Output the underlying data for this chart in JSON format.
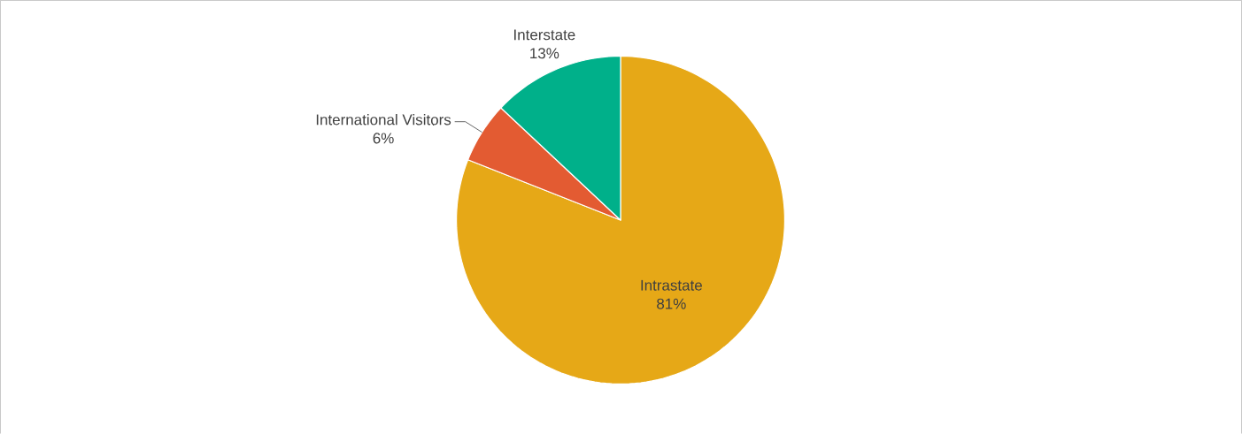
{
  "chart_data": {
    "type": "pie",
    "categories": [
      "Intrastate",
      "International Visitors",
      "Interstate"
    ],
    "values": [
      81,
      6,
      13
    ],
    "value_labels": [
      "81%",
      "6%",
      "13%"
    ],
    "colors": [
      "#e6a817",
      "#e35b32",
      "#00b08a"
    ]
  }
}
